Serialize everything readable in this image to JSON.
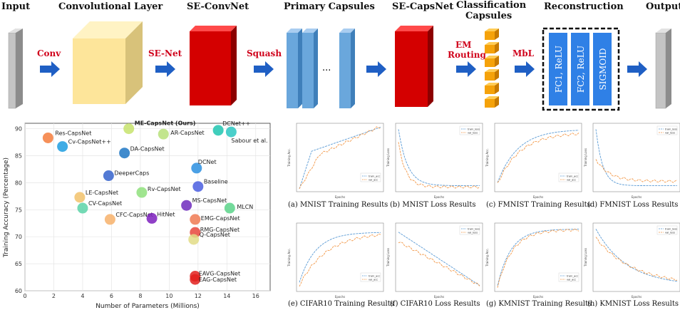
{
  "pipeline": {
    "headers": {
      "input": "Input",
      "conv_layer": "Convolutional Layer",
      "se_convnet": "SE-ConvNet",
      "primary_caps": "Primary Capsules",
      "se_capsnet": "SE-CapsNet",
      "class_caps_1": "Classification",
      "class_caps_2": "Capsules",
      "reconstruction": "Reconstruction",
      "output": "Output"
    },
    "ops": {
      "conv": "Conv",
      "senet": "SE-Net",
      "squash": "Squash",
      "em_1": "EM",
      "em_2": "Routing",
      "mbl": "MbL"
    },
    "ellipsis": "...",
    "recon_blocks": [
      "FC1, ReLU",
      "FC2, ReLU",
      "SIGMOID"
    ],
    "colors": {
      "arrow": "#1f5fc4",
      "red_label": "#d0021b",
      "conv_block": "#fde59a",
      "se_block": "#d40000",
      "caps": "#6aa7dc",
      "class_caps": "#f5a20a",
      "recon": "#2f80e6"
    }
  },
  "chart_data": [
    {
      "type": "scatter",
      "title": "",
      "xlabel": "Number of Parameters (Millions)",
      "ylabel": "Training Accuracy (Percentage)",
      "xlim": [
        0,
        17
      ],
      "ylim": [
        60,
        91
      ],
      "xticks": [
        0,
        2,
        4,
        6,
        8,
        10,
        12,
        14,
        16
      ],
      "yticks": [
        60,
        65,
        70,
        75,
        80,
        85,
        90
      ],
      "grid": true,
      "points": [
        {
          "label": "Res-CapsNet",
          "x": 1.6,
          "y": 88.3,
          "color": "#f47c3c"
        },
        {
          "label": "Cv-CapsNet++",
          "x": 2.6,
          "y": 86.7,
          "color": "#1f9ee0"
        },
        {
          "label": "ME-CapsNet (Ours)",
          "x": 7.2,
          "y": 90.0,
          "color": "#c7e36c",
          "bold": true
        },
        {
          "label": "AR-CapsNet",
          "x": 9.6,
          "y": 89.0,
          "color": "#b7e07a"
        },
        {
          "label": "DCNet++",
          "x": 13.4,
          "y": 89.7,
          "color": "#1ec6b0"
        },
        {
          "label": "Sabour et al.",
          "x": 14.3,
          "y": 89.4,
          "color": "#2cc7c1"
        },
        {
          "label": "DA-CapsNet",
          "x": 6.9,
          "y": 85.5,
          "color": "#1f77c4"
        },
        {
          "label": "DCNet",
          "x": 11.9,
          "y": 82.7,
          "color": "#2b8fe0"
        },
        {
          "label": "DeeperCaps",
          "x": 5.8,
          "y": 81.3,
          "color": "#3563cc"
        },
        {
          "label": "Baseline",
          "x": 12.0,
          "y": 79.3,
          "color": "#4a5ee0"
        },
        {
          "label": "LE-CapsNet",
          "x": 3.8,
          "y": 77.3,
          "color": "#f2c26b"
        },
        {
          "label": "Rv-CapsNet",
          "x": 8.1,
          "y": 78.2,
          "color": "#8fe07c"
        },
        {
          "label": "CV-CapsNet",
          "x": 4.0,
          "y": 75.3,
          "color": "#5cd3a8"
        },
        {
          "label": "MS-CapsNet",
          "x": 11.2,
          "y": 75.8,
          "color": "#6f2bbd"
        },
        {
          "label": "MLCN",
          "x": 14.2,
          "y": 75.3,
          "color": "#5ad48a"
        },
        {
          "label": "CFC-CapsNet",
          "x": 5.9,
          "y": 73.2,
          "color": "#f7b26b"
        },
        {
          "label": "HitNet",
          "x": 8.8,
          "y": 73.4,
          "color": "#7c1fbd"
        },
        {
          "label": "EMG-CapsNet",
          "x": 11.8,
          "y": 73.2,
          "color": "#f07a52"
        },
        {
          "label": "RMG-CapsNet",
          "x": 11.8,
          "y": 70.8,
          "color": "#e8453c"
        },
        {
          "label": "Q-CapsNet",
          "x": 11.7,
          "y": 69.5,
          "color": "#e2dc86"
        },
        {
          "label": "EAVG-CapsNet",
          "x": 11.8,
          "y": 62.7,
          "color": "#e2201d"
        },
        {
          "label": "EAG-CapsNet",
          "x": 11.8,
          "y": 62.1,
          "color": "#e2201d"
        }
      ]
    },
    {
      "type": "line",
      "title": "(a) MNIST Training Results",
      "series": [
        {
          "name": "train_acc"
        },
        {
          "name": "val_acc"
        }
      ]
    },
    {
      "type": "line",
      "title": "(b) MNIST Loss Results",
      "series": [
        {
          "name": "train_loss"
        },
        {
          "name": "val_loss"
        }
      ]
    },
    {
      "type": "line",
      "title": "(c) FMNIST Training Results",
      "series": [
        {
          "name": "train_acc"
        },
        {
          "name": "val_acc"
        }
      ]
    },
    {
      "type": "line",
      "title": "(d) FMNIST Loss Results",
      "series": [
        {
          "name": "train_loss"
        },
        {
          "name": "val_loss"
        }
      ]
    },
    {
      "type": "line",
      "title": "(e) CIFAR10 Training Results",
      "series": [
        {
          "name": "train_acc"
        },
        {
          "name": "val_acc"
        }
      ]
    },
    {
      "type": "line",
      "title": "(f) CIFAR10 Loss Results",
      "series": [
        {
          "name": "train_loss"
        },
        {
          "name": "val_loss"
        }
      ]
    },
    {
      "type": "line",
      "title": "(g) KMNIST Training Results",
      "series": [
        {
          "name": "train_acc"
        },
        {
          "name": "val_acc"
        }
      ]
    },
    {
      "type": "line",
      "title": "(h) KMNIST Loss Results",
      "series": [
        {
          "name": "train_loss"
        },
        {
          "name": "val_loss"
        }
      ]
    }
  ],
  "mini_axis": {
    "acc_ylabel": "Training Acc.",
    "loss_ylabel": "Training Loss",
    "xlabel": "Epochs"
  }
}
